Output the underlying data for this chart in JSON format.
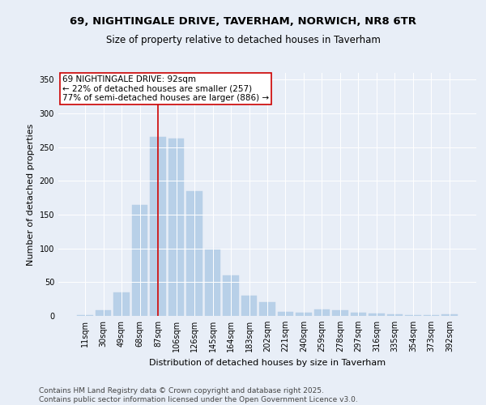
{
  "title_line1": "69, NIGHTINGALE DRIVE, TAVERHAM, NORWICH, NR8 6TR",
  "title_line2": "Size of property relative to detached houses in Taverham",
  "xlabel": "Distribution of detached houses by size in Taverham",
  "ylabel": "Number of detached properties",
  "categories": [
    "11sqm",
    "30sqm",
    "49sqm",
    "68sqm",
    "87sqm",
    "106sqm",
    "126sqm",
    "145sqm",
    "164sqm",
    "183sqm",
    "202sqm",
    "221sqm",
    "240sqm",
    "259sqm",
    "278sqm",
    "297sqm",
    "316sqm",
    "335sqm",
    "354sqm",
    "373sqm",
    "392sqm"
  ],
  "values": [
    1,
    9,
    35,
    165,
    265,
    263,
    185,
    100,
    60,
    30,
    20,
    6,
    5,
    10,
    8,
    5,
    4,
    2,
    1,
    1,
    3
  ],
  "bar_color": "#b8d0e8",
  "bar_edgecolor": "#b8d0e8",
  "background_color": "#e8eef7",
  "plot_bg_color": "#e8eef7",
  "vline_x": 4,
  "vline_color": "#cc0000",
  "annotation_text": "69 NIGHTINGALE DRIVE: 92sqm\n← 22% of detached houses are smaller (257)\n77% of semi-detached houses are larger (886) →",
  "ylim": [
    0,
    360
  ],
  "yticks": [
    0,
    50,
    100,
    150,
    200,
    250,
    300,
    350
  ],
  "footnote": "Contains HM Land Registry data © Crown copyright and database right 2025.\nContains public sector information licensed under the Open Government Licence v3.0.",
  "title_fontsize": 9.5,
  "subtitle_fontsize": 8.5,
  "axis_label_fontsize": 8,
  "tick_fontsize": 7,
  "annotation_fontsize": 7.5,
  "footnote_fontsize": 6.5
}
